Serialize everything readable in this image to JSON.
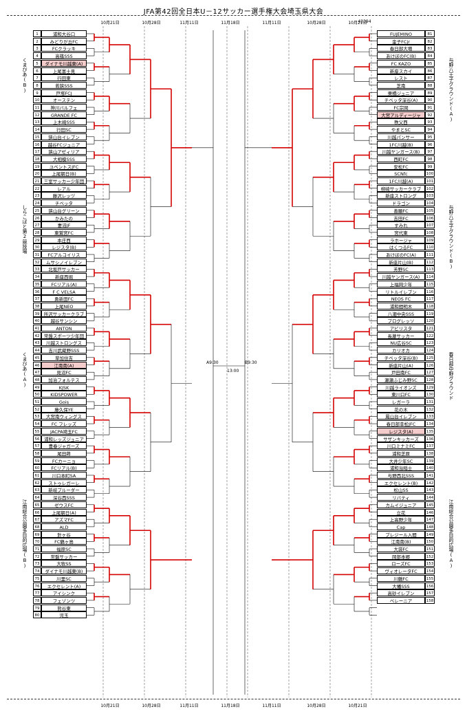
{
  "title": "JFA第42回全日本U－12サッカー選手権大会埼玉県大会",
  "code": "43394",
  "dates_left": [
    "10月21日",
    "10月28日",
    "11月11日",
    "11月18日"
  ],
  "dates_right": [
    "11月11日",
    "10月28日",
    "10月21日"
  ],
  "center": {
    "left_time": "A9:30",
    "right_time": "B9:30",
    "final_time": "13:00"
  },
  "left_teams": [
    "浦和大谷口",
    "みどりが丘FC",
    "FCクラッキ",
    "高篠SSS",
    "ダイナモ川越東(A)",
    "上尾富士見",
    "行田東",
    "若狭SSS",
    "戸塚FCJ",
    "オーステン",
    "神川バルフェ",
    "GRANDE FC",
    "上木崎SSS",
    "行田SC",
    "狭山台イレブン",
    "越谷FCジュニア",
    "狭山アゼィリア",
    "大相模SSS",
    "ユベントスJFC",
    "上尾朝日(B)",
    "三室サッカー少年団",
    "レアル",
    "藤沢レッヅ",
    "チベッタ",
    "狭山台グリーン",
    "かみたの",
    "妻沼JF",
    "東鷲宮FC",
    "本庄西",
    "レジスタ(B)",
    "FCアルコイリス",
    "ムサシノイレブン",
    "北坂戸サッカー",
    "新座西堀",
    "FCリアル(A)",
    "F C VELSA",
    "勇新田FC",
    "上尾NEO",
    "所沢サッカークラブ",
    "越谷サンシン",
    "ANTON",
    "常盤スポーツ少年団",
    "川越ストロングス",
    "吉川武蔵野SSS",
    "草加住吉",
    "江南南(A)",
    "見沼FC",
    "加治フォルテス",
    "KJSK",
    "KIDSPOWER",
    "Gois",
    "藤久保YE",
    "大宮南ウィングス",
    "FC フレッズ",
    "JACPA埼玉FC",
    "浦和レッズジュニア",
    "豊春ジャガーズ",
    "尾田蒔",
    "FCカーニョ",
    "FCリアル(B)",
    "川口本町SA",
    "ストゥレガーレ",
    "新岐ブルーダー",
    "深谷西SSS",
    "ゼウスFC",
    "上尾朝日(A)",
    "アズマFC",
    "ALD",
    "針ヶ谷",
    "FC鶴ヶ島",
    "福原SC",
    "常盤サッカー",
    "大牧SS",
    "ダイナモ川越東(B)",
    "川里SC",
    "エクセレント(A)",
    "アイシンク",
    "フェゾンツ",
    "熊谷東",
    "児玉"
  ],
  "right_teams": [
    "FUJEMINO",
    "金子FCjr",
    "春日部大増",
    "あけぼのFC(B)",
    "FC KAZO",
    "新座スカイ",
    "レスト",
    "芝南",
    "栗橋ジュニア",
    "チベッタ深谷(A)",
    "FC宗岡",
    "大宮アルディージャ",
    "秩父西",
    "やまとSC",
    "川越パンサー",
    "1FC川越(B)",
    "川越ヤンガース(B)",
    "西町FC",
    "安松FC",
    "SCNfc",
    "1FC川越(A)",
    "柳崎サッカークラブ",
    "新座ストロング",
    "ドラゴン",
    "善願FC",
    "吉田FC",
    "すみれ",
    "宮代東",
    "ラホージャ",
    "はくつるFC",
    "あけぼのFC(A)",
    "新座片山(B)",
    "芳野SC",
    "川越ヤンガース(A)",
    "上福岡少年",
    "リトルイレブン",
    "NEOS FC",
    "浦和間明木",
    "八潮中央SSS",
    "プログレッソ",
    "アビリスタ",
    "長瀞サッカー",
    "NU広谷SC",
    "カリオカ",
    "チベッタ深谷(B)",
    "新座片山(A)",
    "戸田南FC",
    "瀬瀬ふじみ野SC",
    "川越ライオンズ",
    "東川口FC",
    "レガーラ",
    "花の木",
    "鳳山台イレブン",
    "春日部幸松JFC",
    "レジスタ(A)",
    "サザンキッカーズ",
    "川口ミナミFC",
    "浦和芝原",
    "大井少年SC",
    "浦和溢稲士",
    "与野西北SSS",
    "エクセレント(B)",
    "松山SS",
    "リバティ",
    "カムイジュニア",
    "立花",
    "上高野少年",
    "Cap",
    "ブレジール入間",
    "江南南(B)",
    "大袋FC",
    "岡部本郷",
    "ローズFC",
    "ヴィオレータFC",
    "川鶴FC",
    "大幡SSS",
    "高砂イレブン",
    "ベレーニア",
    "",
    ""
  ],
  "left_venues": [
    "くまびあ(B)",
    "しらこばと第2競技場",
    "くまびあ(A)",
    "江南総合公園多目的広場(B)"
  ],
  "right_venues": [
    "与野八王子グラウンド(A)",
    "与野八王子グラウンド(B)",
    "春日部中野グラウンド",
    "江南総合公園多目的広場(A)"
  ],
  "highlight_left": [
    5,
    46
  ],
  "highlight_right": [
    92,
    135
  ]
}
